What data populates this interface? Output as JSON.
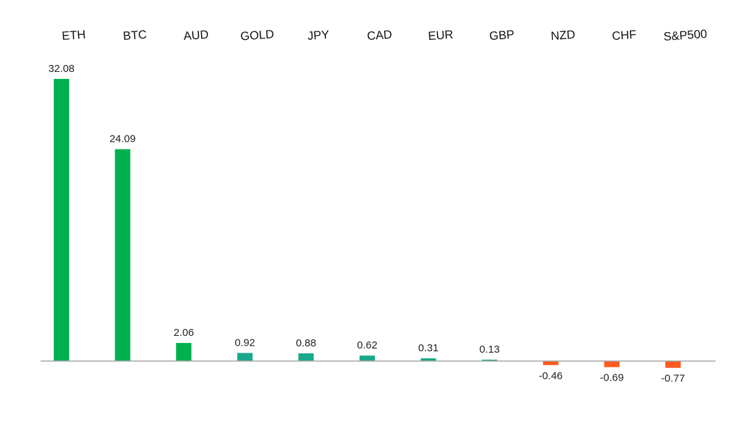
{
  "chart_data": {
    "type": "bar",
    "categories": [
      "ETH",
      "BTC",
      "AUD",
      "GOLD",
      "JPY",
      "CAD",
      "EUR",
      "GBP",
      "NZD",
      "CHF",
      "S&P500"
    ],
    "values": [
      32.08,
      24.09,
      2.06,
      0.92,
      0.88,
      0.62,
      0.31,
      0.13,
      -0.46,
      -0.69,
      -0.77
    ],
    "value_labels": [
      "32.08",
      "24.09",
      "2.06",
      "0.92",
      "0.88",
      "0.62",
      "0.31",
      "0.13",
      "-0.46",
      "-0.69",
      "-0.77"
    ],
    "title": "",
    "xlabel": "",
    "ylabel": "",
    "ylim": [
      -1.5,
      34
    ],
    "grid": false,
    "legend": "none",
    "category_label_position": "top",
    "colors": {
      "positive_large": "#00b050",
      "positive_small": "#1aa88a",
      "negative": "#ff5a1f",
      "axis": "#a6a6a6"
    }
  }
}
